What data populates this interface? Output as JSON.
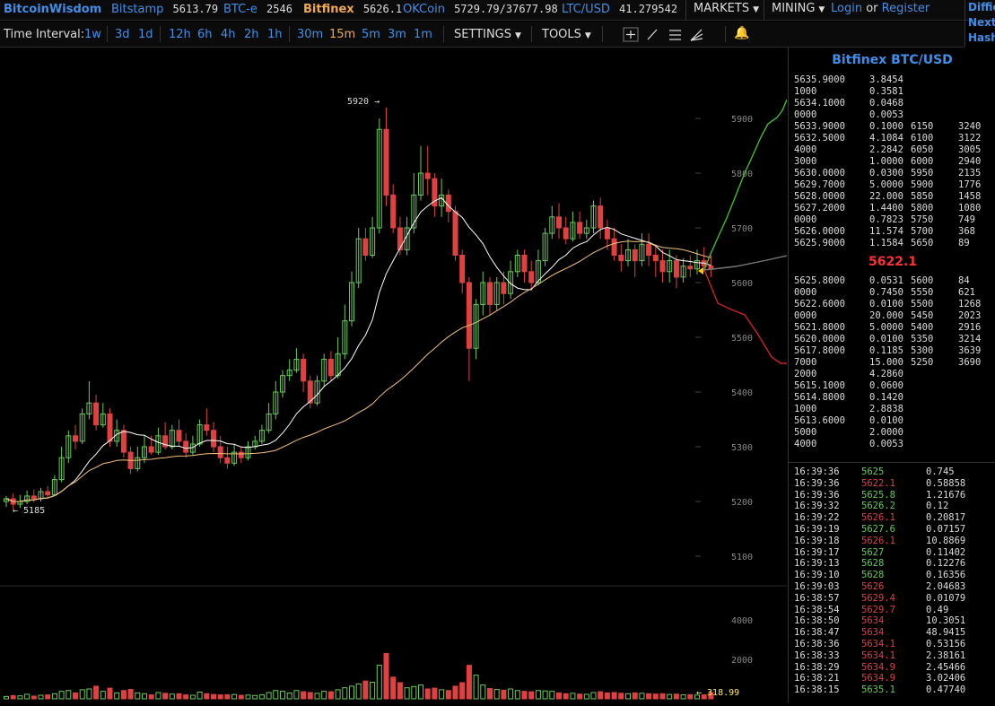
{
  "top": {
    "brand": "BitcoinWisdom",
    "exchanges": [
      {
        "name": "Bitstamp",
        "price": "5613.79"
      },
      {
        "name": "BTC-e",
        "price": "2546"
      },
      {
        "name": "Bitfinex",
        "price": "5626.1"
      },
      {
        "name": "OKCoin",
        "price": "5729.79/37677.98"
      },
      {
        "name": "LTC/USD",
        "price": "41.279542"
      }
    ],
    "markets": "MARKETS",
    "mining": "MINING",
    "login": "Login",
    "or": "or",
    "register": "Register",
    "right": [
      "Diffic",
      "Next:",
      "Hash"
    ]
  },
  "toolbar": {
    "label": "Time Interval:",
    "intervals": [
      "1w",
      "3d",
      "1d",
      "12h",
      "6h",
      "4h",
      "2h",
      "1h",
      "30m",
      "15m",
      "5m",
      "3m",
      "1m"
    ],
    "active": "15m",
    "settings": "SETTINGS",
    "tools": "TOOLS"
  },
  "colors": {
    "up": "#66cc55",
    "down": "#e04040",
    "link": "#3f8fe8",
    "active": "#f0a84c"
  },
  "chart": {
    "price_axis": [
      "5900",
      "5800",
      "5700",
      "5600",
      "5500",
      "5400",
      "5300",
      "5200",
      "5100"
    ],
    "volume_axis": [
      "4000",
      "2000"
    ],
    "high_label": "5920 →",
    "low_label": "← 5185",
    "volume_last": "← 318.99",
    "candles": [
      [
        5200,
        5205,
        5190,
        5210,
        120
      ],
      [
        5205,
        5195,
        5185,
        5215,
        160
      ],
      [
        5195,
        5200,
        5188,
        5212,
        150
      ],
      [
        5200,
        5210,
        5195,
        5220,
        230
      ],
      [
        5210,
        5205,
        5198,
        5222,
        140
      ],
      [
        5205,
        5218,
        5200,
        5225,
        180
      ],
      [
        5218,
        5212,
        5205,
        5228,
        200
      ],
      [
        5212,
        5240,
        5210,
        5248,
        260
      ],
      [
        5240,
        5280,
        5235,
        5300,
        380
      ],
      [
        5280,
        5320,
        5270,
        5330,
        420
      ],
      [
        5320,
        5310,
        5295,
        5340,
        300
      ],
      [
        5310,
        5360,
        5305,
        5370,
        460
      ],
      [
        5360,
        5380,
        5350,
        5420,
        500
      ],
      [
        5380,
        5340,
        5330,
        5395,
        640
      ],
      [
        5340,
        5360,
        5335,
        5380,
        380
      ],
      [
        5360,
        5310,
        5300,
        5370,
        540
      ],
      [
        5310,
        5330,
        5300,
        5350,
        300
      ],
      [
        5330,
        5290,
        5280,
        5340,
        420
      ],
      [
        5290,
        5260,
        5250,
        5300,
        480
      ],
      [
        5260,
        5280,
        5255,
        5300,
        300
      ],
      [
        5280,
        5300,
        5270,
        5320,
        260
      ],
      [
        5300,
        5290,
        5285,
        5320,
        200
      ],
      [
        5290,
        5320,
        5285,
        5335,
        320
      ],
      [
        5320,
        5300,
        5295,
        5345,
        280
      ],
      [
        5300,
        5330,
        5295,
        5340,
        240
      ],
      [
        5330,
        5310,
        5300,
        5350,
        260
      ],
      [
        5310,
        5290,
        5280,
        5325,
        200
      ],
      [
        5290,
        5305,
        5285,
        5320,
        180
      ],
      [
        5305,
        5340,
        5300,
        5350,
        340
      ],
      [
        5340,
        5330,
        5320,
        5370,
        260
      ],
      [
        5330,
        5300,
        5290,
        5345,
        220
      ],
      [
        5300,
        5280,
        5270,
        5320,
        200
      ],
      [
        5280,
        5270,
        5260,
        5300,
        210
      ],
      [
        5270,
        5290,
        5265,
        5305,
        220
      ],
      [
        5290,
        5280,
        5270,
        5300,
        180
      ],
      [
        5280,
        5300,
        5275,
        5310,
        190
      ],
      [
        5300,
        5310,
        5295,
        5320,
        170
      ],
      [
        5310,
        5330,
        5305,
        5340,
        200
      ],
      [
        5330,
        5360,
        5325,
        5380,
        320
      ],
      [
        5360,
        5400,
        5350,
        5420,
        420
      ],
      [
        5400,
        5430,
        5390,
        5440,
        380
      ],
      [
        5430,
        5440,
        5420,
        5460,
        300
      ],
      [
        5440,
        5460,
        5435,
        5480,
        420
      ],
      [
        5460,
        5420,
        5400,
        5470,
        360
      ],
      [
        5420,
        5380,
        5370,
        5430,
        320
      ],
      [
        5380,
        5420,
        5375,
        5430,
        280
      ],
      [
        5420,
        5460,
        5410,
        5470,
        380
      ],
      [
        5460,
        5430,
        5420,
        5475,
        360
      ],
      [
        5430,
        5470,
        5425,
        5500,
        460
      ],
      [
        5470,
        5530,
        5460,
        5560,
        560
      ],
      [
        5530,
        5600,
        5520,
        5620,
        640
      ],
      [
        5600,
        5680,
        5590,
        5700,
        760
      ],
      [
        5680,
        5650,
        5640,
        5700,
        900
      ],
      [
        5650,
        5700,
        5645,
        5720,
        840
      ],
      [
        5700,
        5880,
        5690,
        5900,
        1700
      ],
      [
        5880,
        5760,
        5740,
        5920,
        2300
      ],
      [
        5760,
        5700,
        5690,
        5780,
        1100
      ],
      [
        5700,
        5660,
        5650,
        5720,
        820
      ],
      [
        5660,
        5700,
        5650,
        5720,
        560
      ],
      [
        5700,
        5760,
        5690,
        5800,
        620
      ],
      [
        5760,
        5800,
        5750,
        5850,
        700
      ],
      [
        5800,
        5790,
        5760,
        5850,
        500
      ],
      [
        5790,
        5740,
        5720,
        5800,
        540
      ],
      [
        5740,
        5760,
        5720,
        5790,
        460
      ],
      [
        5760,
        5730,
        5710,
        5770,
        420
      ],
      [
        5730,
        5650,
        5640,
        5740,
        640
      ],
      [
        5650,
        5600,
        5580,
        5660,
        820
      ],
      [
        5600,
        5480,
        5420,
        5610,
        1700
      ],
      [
        5480,
        5560,
        5460,
        5570,
        1200
      ],
      [
        5560,
        5600,
        5540,
        5620,
        700
      ],
      [
        5600,
        5560,
        5540,
        5610,
        520
      ],
      [
        5560,
        5600,
        5550,
        5610,
        480
      ],
      [
        5600,
        5580,
        5560,
        5620,
        440
      ],
      [
        5580,
        5620,
        5570,
        5640,
        500
      ],
      [
        5620,
        5650,
        5610,
        5660,
        420
      ],
      [
        5650,
        5620,
        5600,
        5660,
        380
      ],
      [
        5620,
        5600,
        5590,
        5640,
        360
      ],
      [
        5600,
        5640,
        5595,
        5660,
        420
      ],
      [
        5640,
        5690,
        5630,
        5700,
        400
      ],
      [
        5690,
        5720,
        5680,
        5740,
        380
      ],
      [
        5720,
        5700,
        5680,
        5745,
        300
      ],
      [
        5700,
        5680,
        5670,
        5720,
        260
      ],
      [
        5680,
        5710,
        5675,
        5730,
        280
      ],
      [
        5710,
        5690,
        5680,
        5730,
        240
      ],
      [
        5690,
        5700,
        5680,
        5715,
        230
      ],
      [
        5700,
        5740,
        5690,
        5750,
        320
      ],
      [
        5740,
        5700,
        5680,
        5755,
        360
      ],
      [
        5700,
        5680,
        5660,
        5715,
        300
      ],
      [
        5680,
        5650,
        5640,
        5700,
        320
      ],
      [
        5650,
        5640,
        5620,
        5670,
        280
      ],
      [
        5640,
        5660,
        5630,
        5680,
        260
      ],
      [
        5660,
        5640,
        5610,
        5670,
        300
      ],
      [
        5640,
        5670,
        5630,
        5690,
        280
      ],
      [
        5670,
        5650,
        5630,
        5690,
        260
      ],
      [
        5650,
        5640,
        5610,
        5670,
        240
      ],
      [
        5640,
        5620,
        5600,
        5660,
        260
      ],
      [
        5620,
        5640,
        5600,
        5660,
        220
      ],
      [
        5640,
        5610,
        5590,
        5650,
        240
      ],
      [
        5610,
        5630,
        5600,
        5645,
        200
      ],
      [
        5630,
        5625,
        5610,
        5650,
        210
      ],
      [
        5625,
        5640,
        5615,
        5660,
        190
      ],
      [
        5640,
        5630,
        5620,
        5665,
        200
      ],
      [
        5630,
        5626,
        5610,
        5650,
        319
      ]
    ]
  },
  "orderbook": {
    "title": "Bitfinex BTC/USD",
    "asks": [
      [
        "5635.9000",
        "3.8454",
        "",
        ""
      ],
      [
        "1000",
        "0.3581",
        "",
        ""
      ],
      [
        "5634.1000",
        "0.0468",
        "",
        ""
      ],
      [
        "0000",
        "0.0053",
        "",
        ""
      ],
      [
        "5633.9000",
        "0.1000",
        "6150",
        "3240"
      ],
      [
        "5632.5000",
        "4.1084",
        "6100",
        "3122"
      ],
      [
        "4000",
        "2.2842",
        "6050",
        "3005"
      ],
      [
        "3000",
        "1.0000",
        "6000",
        "2940"
      ],
      [
        "5630.0000",
        "0.0300",
        "5950",
        "2135"
      ],
      [
        "5629.7000",
        "5.0000",
        "5900",
        "1776"
      ],
      [
        "5628.0000",
        "22.000",
        "5850",
        "1458"
      ],
      [
        "5627.2000",
        "1.4400",
        "5800",
        "1080"
      ],
      [
        "0000",
        "0.7823",
        "5750",
        "749"
      ],
      [
        "5626.0000",
        "11.574",
        "5700",
        "368"
      ],
      [
        "5625.9000",
        "1.1584",
        "5650",
        "89"
      ]
    ],
    "last": "5622.1",
    "bids": [
      [
        "5625.8000",
        "0.0531",
        "5600",
        "84"
      ],
      [
        "0000",
        "0.7450",
        "5550",
        "621"
      ],
      [
        "5622.6000",
        "0.0100",
        "5500",
        "1268"
      ],
      [
        "0000",
        "20.000",
        "5450",
        "2023"
      ],
      [
        "5621.8000",
        "5.0000",
        "5400",
        "2916"
      ],
      [
        "5620.0000",
        "0.0100",
        "5350",
        "3214"
      ],
      [
        "5617.8000",
        "0.1185",
        "5300",
        "3639"
      ],
      [
        "7000",
        "15.000",
        "5250",
        "3690"
      ],
      [
        "2000",
        "4.2860",
        "",
        ""
      ],
      [
        "5615.1000",
        "0.0600",
        "",
        ""
      ],
      [
        "5614.8000",
        "0.1420",
        "",
        ""
      ],
      [
        "1000",
        "2.8838",
        "",
        ""
      ],
      [
        "5613.6000",
        "0.0100",
        "",
        ""
      ],
      [
        "5000",
        "2.0000",
        "",
        ""
      ],
      [
        "4000",
        "0.0053",
        "",
        ""
      ]
    ]
  },
  "trades": [
    [
      "16:39:36",
      "5625",
      "0.745",
      "g"
    ],
    [
      "16:39:36",
      "5622.1",
      "0.58858",
      "r"
    ],
    [
      "16:39:36",
      "5625.8",
      "1.21676",
      "g"
    ],
    [
      "16:39:32",
      "5626.2",
      "0.12",
      "g"
    ],
    [
      "16:39:22",
      "5626.1",
      "0.20817",
      "r"
    ],
    [
      "16:39:19",
      "5627.6",
      "0.07157",
      "g"
    ],
    [
      "16:39:18",
      "5626.1",
      "10.8869",
      "r"
    ],
    [
      "16:39:17",
      "5627",
      "0.11402",
      "g"
    ],
    [
      "16:39:13",
      "5628",
      "0.12276",
      "g"
    ],
    [
      "16:39:10",
      "5628",
      "0.16356",
      "g"
    ],
    [
      "16:39:03",
      "5626",
      "2.04683",
      "r"
    ],
    [
      "16:38:57",
      "5629.4",
      "0.01079",
      "r"
    ],
    [
      "16:38:54",
      "5629.7",
      "0.49",
      "r"
    ],
    [
      "16:38:50",
      "5634",
      "10.3051",
      "r"
    ],
    [
      "16:38:47",
      "5634",
      "48.9415",
      "r"
    ],
    [
      "16:38:36",
      "5634.1",
      "0.53156",
      "r"
    ],
    [
      "16:38:33",
      "5634.1",
      "2.38161",
      "r"
    ],
    [
      "16:38:29",
      "5634.9",
      "2.45466",
      "r"
    ],
    [
      "16:38:21",
      "5634.9",
      "3.02406",
      "r"
    ],
    [
      "16:38:15",
      "5635.1",
      "0.47740",
      "g"
    ]
  ]
}
